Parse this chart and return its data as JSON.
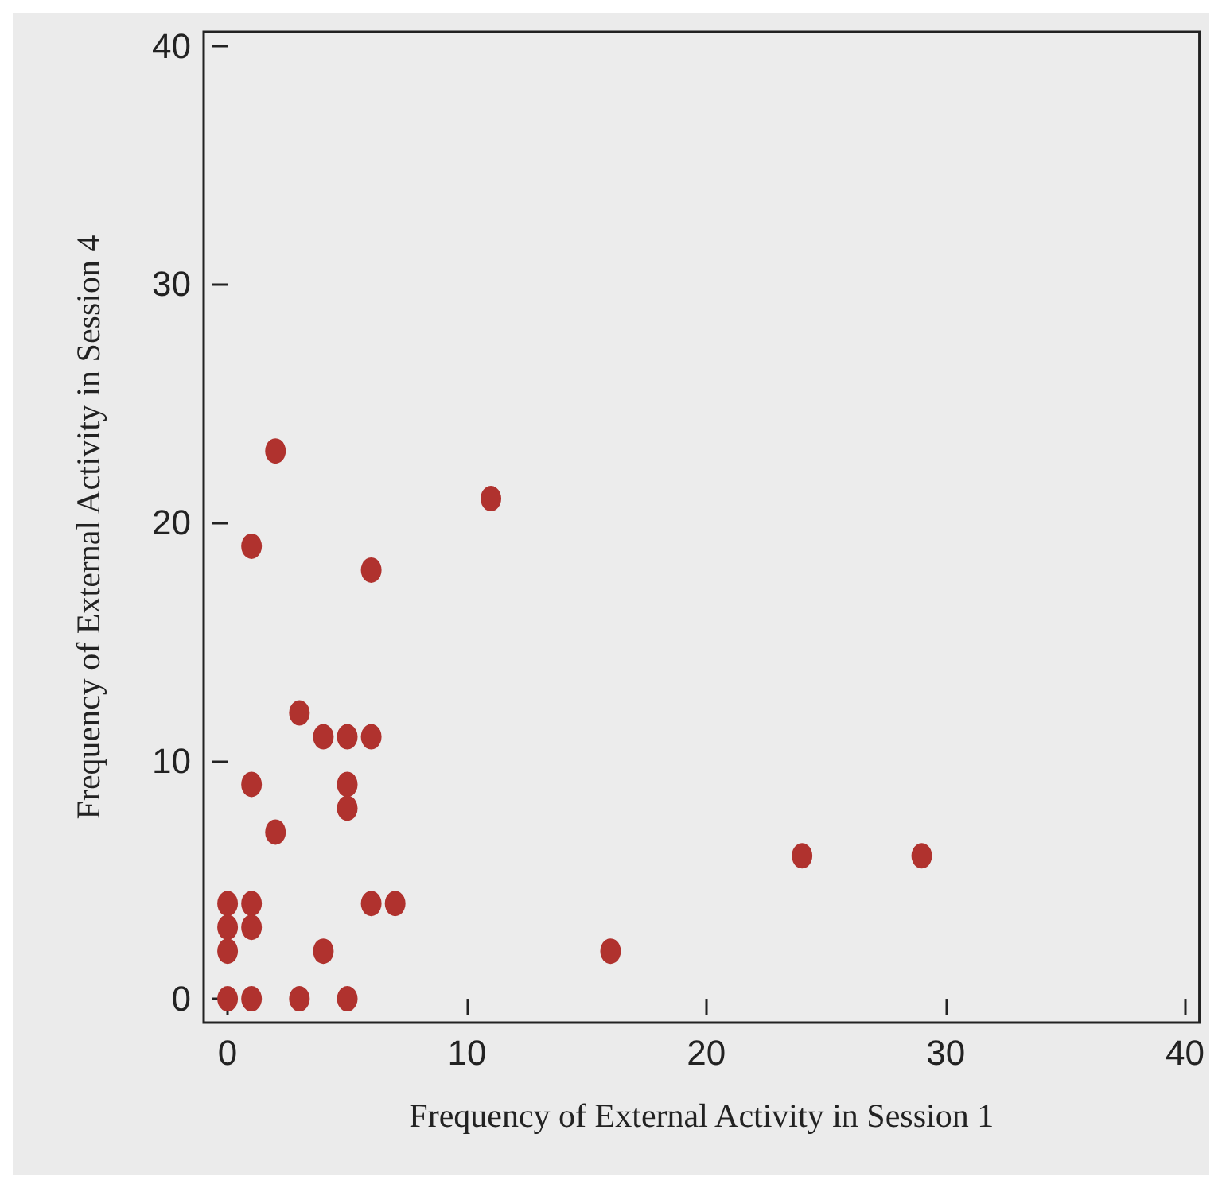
{
  "chart_data": {
    "type": "scatter",
    "xlabel": "Frequency of External Activity in Session 1",
    "ylabel": "Frequency of External Activity in Session 4",
    "x": [
      0,
      0,
      0,
      0,
      1,
      1,
      1,
      1,
      1,
      2,
      2,
      3,
      3,
      4,
      4,
      5,
      5,
      5,
      5,
      6,
      6,
      6,
      7,
      11,
      16,
      24,
      29
    ],
    "values": [
      4,
      3,
      2,
      0,
      4,
      3,
      0,
      9,
      19,
      23,
      7,
      12,
      0,
      11,
      2,
      11,
      9,
      8,
      0,
      11,
      18,
      4,
      4,
      21,
      2,
      6,
      6
    ],
    "color": "#b0322e",
    "marker": "circle",
    "xlim": [
      -1,
      40.6
    ],
    "ylim": [
      -1,
      40.6
    ],
    "xticks": [
      0,
      10,
      20,
      30,
      40
    ],
    "yticks": [
      0,
      10,
      20,
      30,
      40
    ]
  }
}
